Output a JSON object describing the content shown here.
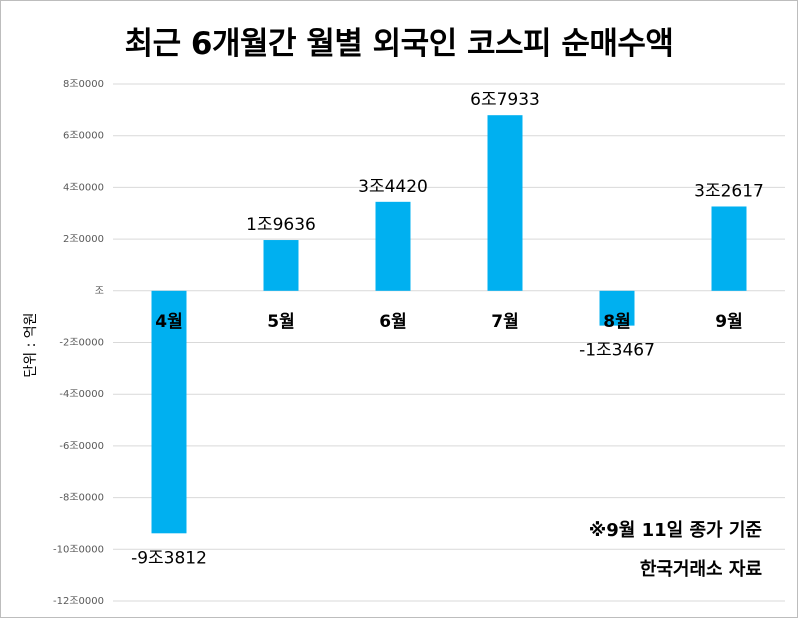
{
  "chart_data": {
    "type": "bar",
    "title": "최근 6개월간 월별 외국인 코스피 순매수액",
    "ylabel": "단위 : 억원",
    "ylim": [
      -120000,
      80000
    ],
    "y_ticks": [
      80000,
      60000,
      40000,
      20000,
      0,
      -20000,
      -40000,
      -60000,
      -80000,
      -100000,
      -120000
    ],
    "y_tick_labels": [
      "8조0000",
      "6조0000",
      "4조0000",
      "2조0000",
      "조",
      "-2조0000",
      "-4조0000",
      "-6조0000",
      "-8조0000",
      "-10조0000",
      "-12조0000"
    ],
    "categories": [
      "4월",
      "5월",
      "6월",
      "7월",
      "8월",
      "9월"
    ],
    "values": [
      -93812,
      19636,
      34420,
      67933,
      -13467,
      32617
    ],
    "data_labels": [
      "-9조3812",
      "1조9636",
      "3조4420",
      "6조7933",
      "-1조3467",
      "3조2617"
    ],
    "grid": true,
    "bar_color": "#00b0f0"
  },
  "notes": {
    "basis": "※9월 11일 종가 기준",
    "source": "한국거래소 자료"
  }
}
